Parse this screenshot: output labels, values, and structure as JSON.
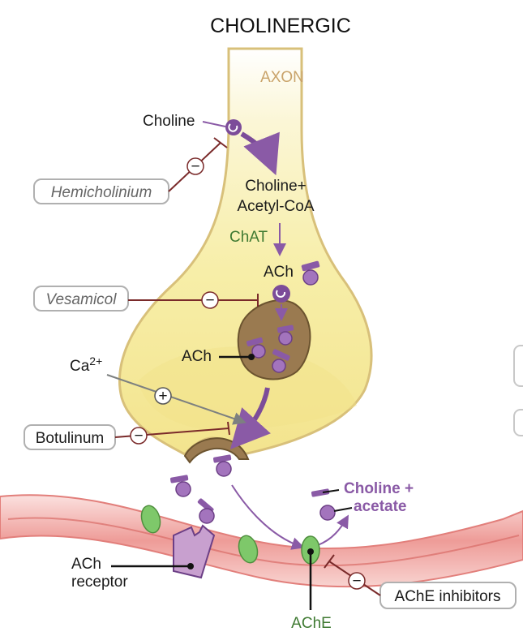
{
  "title": "CHOLINERGIC",
  "axon_label": "AXON",
  "labels": {
    "choline": "Choline",
    "choline_acetylcoa_1": "Choline+",
    "choline_acetylcoa_2": "Acetyl-CoA",
    "chat": "ChAT",
    "ach_top": "ACh",
    "ach_vesicle": "ACh",
    "calcium_base": "Ca",
    "calcium_sup": "2+",
    "choline_acetate_1": "Choline +",
    "choline_acetate_2": "acetate",
    "ach_receptor_1": "ACh",
    "ach_receptor_2": "receptor",
    "ache": "AChE"
  },
  "drugs": {
    "hemicholinium": "Hemicholinium",
    "vesamicol": "Vesamicol",
    "botulinum": "Botulinum",
    "ache_inhibitors": "AChE inhibitors"
  },
  "signs": {
    "minus": "−",
    "plus": "+"
  },
  "colors": {
    "neuron_fill": "#f6efaa",
    "neuron_stroke": "#d8c07a",
    "vesicle_fill": "#9a7a50",
    "ach_molecule": "#a374bd",
    "inhibitor_line": "#7a2a2a",
    "membrane": "#f1a9a6",
    "receptor": "#c8a0cf",
    "ache_green": "#7ec86a"
  }
}
